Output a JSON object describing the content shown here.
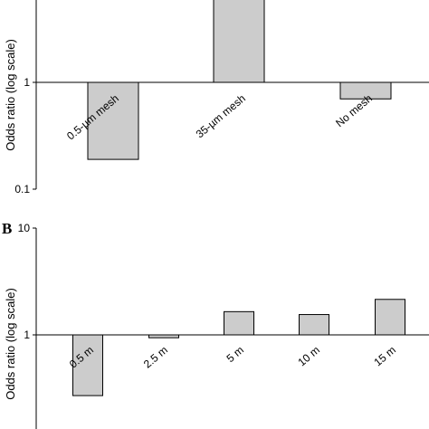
{
  "chart_data": [
    {
      "panel": "",
      "type": "bar",
      "scale": "log",
      "baseline": 1,
      "ylabel": "Odds ratio (log scale)",
      "ylim": [
        0.1,
        10
      ],
      "y_ticks": [
        "0.1",
        "1"
      ],
      "categories": [
        "0.5-µm mesh",
        "35-µm mesh",
        "No mesh"
      ],
      "values": [
        0.19,
        10,
        0.7
      ],
      "bar_color": "#cccccc",
      "grid": false
    },
    {
      "panel": "B",
      "type": "bar",
      "scale": "log",
      "baseline": 1,
      "ylabel": "Odds ratio (log scale)",
      "ylim": [
        0.1,
        10
      ],
      "y_ticks": [
        "10",
        "1"
      ],
      "categories": [
        "0.5 m",
        "2.5 m",
        "5 m",
        "10 m",
        "15 m"
      ],
      "values": [
        0.27,
        0.94,
        1.65,
        1.55,
        2.15
      ],
      "bar_color": "#cccccc",
      "grid": false
    }
  ]
}
